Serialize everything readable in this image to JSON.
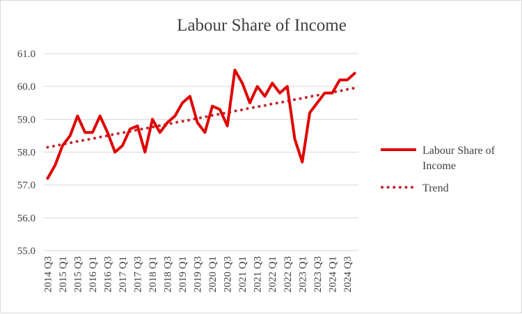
{
  "chart_data": {
    "type": "line",
    "title": "Labour Share of Income",
    "xlabel": "",
    "ylabel": "",
    "ylim": [
      55.0,
      61.0
    ],
    "y_ticks": [
      "55.0",
      "56.0",
      "57.0",
      "58.0",
      "59.0",
      "60.0",
      "61.0"
    ],
    "grid": true,
    "legend_position": "right",
    "categories": [
      "2014 Q3",
      "2014 Q4",
      "2015 Q1",
      "2015 Q2",
      "2015 Q3",
      "2015 Q4",
      "2016 Q1",
      "2016 Q2",
      "2016 Q3",
      "2016 Q4",
      "2017 Q1",
      "2017 Q2",
      "2017 Q3",
      "2017 Q4",
      "2018 Q1",
      "2018 Q2",
      "2018 Q3",
      "2018 Q4",
      "2019 Q1",
      "2019 Q2",
      "2019 Q3",
      "2019 Q4",
      "2020 Q1",
      "2020 Q2",
      "2020 Q3",
      "2020 Q4",
      "2021 Q1",
      "2021 Q2",
      "2021 Q3",
      "2021 Q4",
      "2022 Q1",
      "2022 Q2",
      "2022 Q3",
      "2022 Q4",
      "2023 Q1",
      "2023 Q2",
      "2023 Q3",
      "2023 Q4",
      "2024 Q1",
      "2024 Q2",
      "2024 Q3",
      "2024 Q4"
    ],
    "x_tick_labels": [
      "2014 Q3",
      "",
      "2015 Q1",
      "",
      "2015 Q3",
      "",
      "2016 Q1",
      "",
      "2016 Q3",
      "",
      "2017 Q1",
      "",
      "2017 Q3",
      "",
      "2018 Q1",
      "",
      "2018 Q3",
      "",
      "2019 Q1",
      "",
      "2019 Q3",
      "",
      "2020 Q1",
      "",
      "2020 Q3",
      "",
      "2021 Q1",
      "",
      "2021 Q3",
      "",
      "2022 Q1",
      "",
      "2022 Q3",
      "",
      "2023 Q1",
      "",
      "2023 Q3",
      "",
      "2024 Q1",
      "",
      "2024 Q3",
      ""
    ],
    "series": [
      {
        "name": "Labour Share of Income",
        "color": "#e00000",
        "style": "solid",
        "values": [
          57.2,
          57.6,
          58.2,
          58.5,
          59.1,
          58.6,
          58.6,
          59.1,
          58.6,
          58.0,
          58.2,
          58.7,
          58.8,
          58.0,
          59.0,
          58.6,
          58.9,
          59.1,
          59.5,
          59.7,
          58.9,
          58.6,
          59.4,
          59.3,
          58.8,
          60.5,
          60.1,
          59.5,
          60.0,
          59.7,
          60.1,
          59.8,
          60.0,
          58.4,
          57.7,
          59.2,
          59.5,
          59.8,
          59.8,
          60.2,
          60.2,
          60.4
        ]
      },
      {
        "name": "Trend",
        "color": "#c0282d",
        "style": "dotted",
        "values": [
          58.15,
          58.19,
          58.24,
          58.28,
          58.33,
          58.37,
          58.41,
          58.46,
          58.5,
          58.55,
          58.59,
          58.63,
          58.68,
          58.72,
          58.76,
          58.81,
          58.85,
          58.9,
          58.94,
          58.98,
          59.03,
          59.07,
          59.12,
          59.16,
          59.2,
          59.25,
          59.29,
          59.34,
          59.38,
          59.42,
          59.47,
          59.51,
          59.55,
          59.6,
          59.64,
          59.69,
          59.73,
          59.77,
          59.82,
          59.86,
          59.91,
          59.95
        ]
      }
    ]
  }
}
